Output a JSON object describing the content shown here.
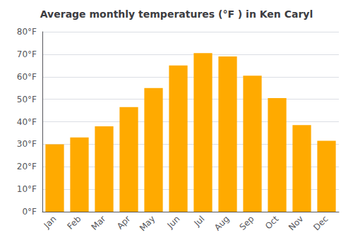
{
  "chart_data": {
    "type": "bar",
    "title": "Average monthly temperatures (°F ) in Ken Caryl",
    "categories": [
      "Jan",
      "Feb",
      "Mar",
      "Apr",
      "May",
      "Jun",
      "Jul",
      "Aug",
      "Sep",
      "Oct",
      "Nov",
      "Dec"
    ],
    "values": [
      30,
      33,
      38,
      46.5,
      55,
      65,
      70.5,
      69,
      60.5,
      50.5,
      38.5,
      31.5
    ],
    "color": "#FFAA00",
    "ylim": [
      0,
      80
    ],
    "yticks": [
      {
        "value": 0,
        "label": "0°F"
      },
      {
        "value": 10,
        "label": "10°F"
      },
      {
        "value": 20,
        "label": "20°F"
      },
      {
        "value": 30,
        "label": "30°F"
      },
      {
        "value": 40,
        "label": "40°F"
      },
      {
        "value": 50,
        "label": "50°F"
      },
      {
        "value": 60,
        "label": "60°F"
      },
      {
        "value": 70,
        "label": "70°F"
      },
      {
        "value": 80,
        "label": "80°F"
      }
    ],
    "grid": true
  }
}
